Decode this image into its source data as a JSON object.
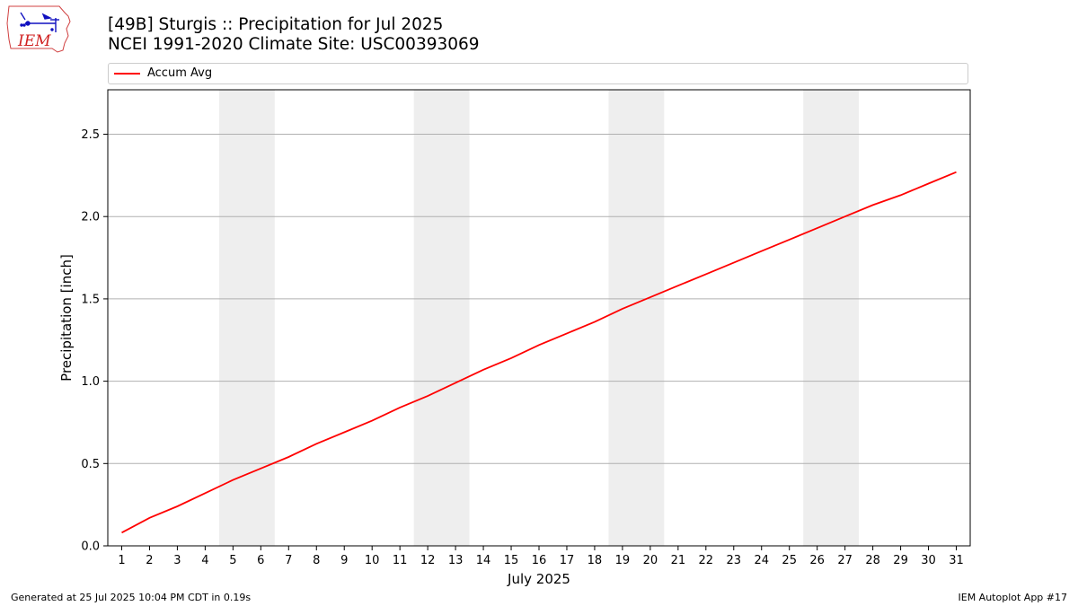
{
  "header": {
    "title_line1": "[49B] Sturgis :: Precipitation for Jul 2025",
    "title_line2": "NCEI 1991-2020 Climate Site: USC00393069"
  },
  "logo": {
    "text": "IEM",
    "icon": "iowa-state-outline-logo"
  },
  "legend": {
    "label": "Accum Avg",
    "color": "#ff0000"
  },
  "chart_data": {
    "type": "line",
    "xlabel": "July 2025",
    "ylabel": "Precipitation [inch]",
    "x": [
      1,
      2,
      3,
      4,
      5,
      6,
      7,
      8,
      9,
      10,
      11,
      12,
      13,
      14,
      15,
      16,
      17,
      18,
      19,
      20,
      21,
      22,
      23,
      24,
      25,
      26,
      27,
      28,
      29,
      30,
      31
    ],
    "xlim": [
      0.5,
      31.5
    ],
    "ylim": [
      0,
      2.77
    ],
    "yticks": [
      0.0,
      0.5,
      1.0,
      1.5,
      2.0,
      2.5
    ],
    "ytick_labels": [
      "0.0",
      "0.5",
      "1.0",
      "1.5",
      "2.0",
      "2.5"
    ],
    "grid": "horizontal",
    "legend_placement": "top",
    "weekend_bands": [
      [
        5,
        6
      ],
      [
        12,
        13
      ],
      [
        19,
        20
      ],
      [
        26,
        27
      ]
    ],
    "band_color": "#eeeeee",
    "series": [
      {
        "name": "Accum Avg",
        "color": "#ff0000",
        "values": [
          0.08,
          0.17,
          0.24,
          0.32,
          0.4,
          0.47,
          0.54,
          0.62,
          0.69,
          0.76,
          0.84,
          0.91,
          0.99,
          1.07,
          1.14,
          1.22,
          1.29,
          1.36,
          1.44,
          1.51,
          1.58,
          1.65,
          1.72,
          1.79,
          1.86,
          1.93,
          2.0,
          2.07,
          2.13,
          2.2,
          2.27
        ]
      }
    ]
  },
  "footer": {
    "left": "Generated at 25 Jul 2025 10:04 PM CDT in 0.19s",
    "right": "IEM Autoplot App #17"
  }
}
